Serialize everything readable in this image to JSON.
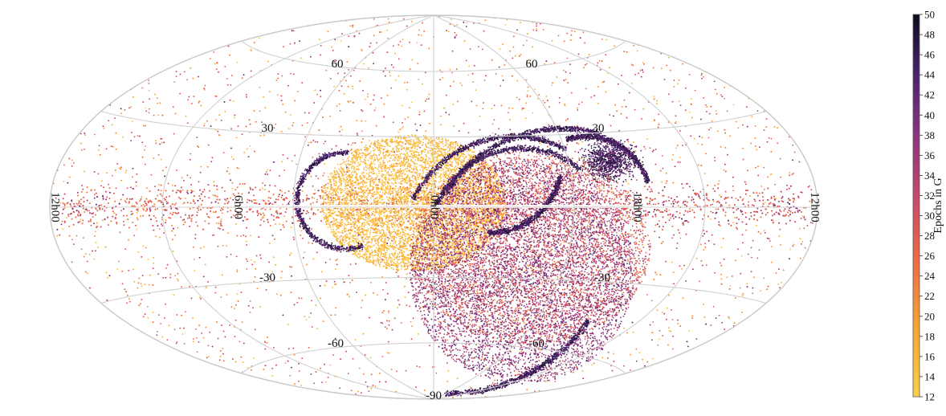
{
  "chart_data": {
    "type": "scatter",
    "projection": "aitoff-hammer",
    "title": "",
    "colorbar": {
      "label": "Epochs in G",
      "range": [
        12,
        50
      ],
      "ticks": [
        12,
        14,
        16,
        18,
        20,
        22,
        24,
        26,
        28,
        30,
        32,
        34,
        36,
        38,
        40,
        42,
        44,
        46,
        48,
        50
      ],
      "colormap": [
        "#fbd14a",
        "#f8a532",
        "#ed6a45",
        "#c8486a",
        "#8e3480",
        "#4b2372",
        "#0d0c1d"
      ]
    },
    "grid": true,
    "longitude_labels": [
      "12h00",
      "6h00",
      "0h00",
      "18h00",
      "12h00"
    ],
    "latitude_labels": [
      "60",
      "60",
      "30",
      "30",
      "-30",
      "-30",
      "-60",
      "-60",
      "-90"
    ],
    "density_regions": [
      {
        "name": "galactic-plane-band",
        "epochs_range": [
          20,
          34
        ]
      },
      {
        "name": "low-epoch-region",
        "epochs_range": [
          12,
          18
        ]
      },
      {
        "name": "scan-arcs",
        "epochs_range": [
          36,
          50
        ]
      },
      {
        "name": "high-latitude-field",
        "epochs_range": [
          14,
          42
        ]
      }
    ]
  }
}
